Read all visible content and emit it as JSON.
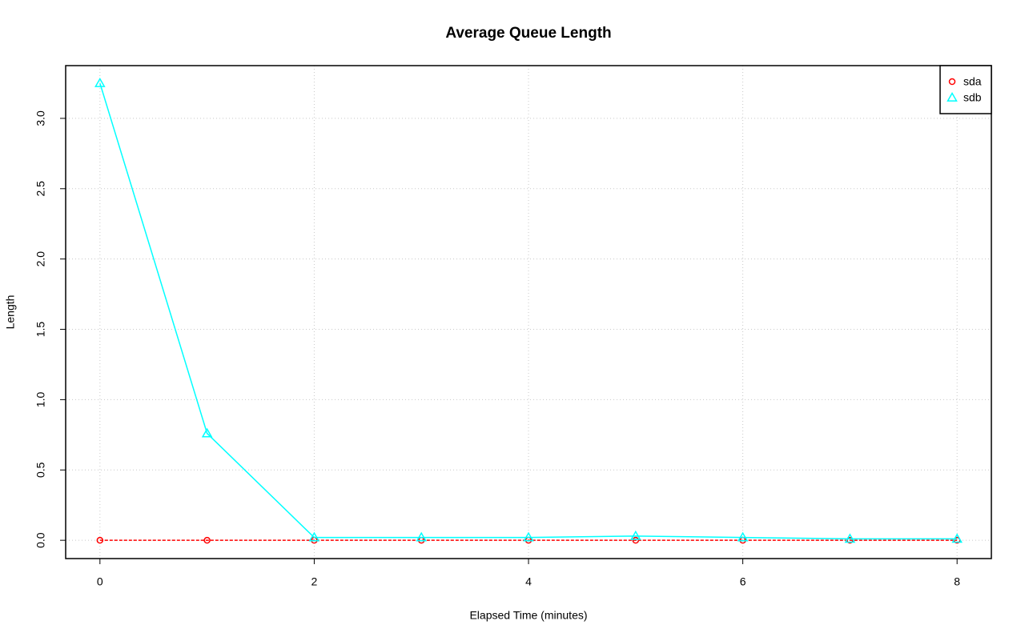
{
  "chart_data": {
    "type": "line",
    "title": "Average Queue Length",
    "x_label": "Elapsed Time (minutes)",
    "y_label": "Length",
    "x": [
      0,
      1,
      2,
      3,
      4,
      5,
      6,
      7,
      8
    ],
    "series": [
      {
        "name": "sda",
        "color": "#ff0000",
        "marker": "circle",
        "linestyle": "dashed",
        "values": [
          0,
          0,
          0,
          0,
          0,
          0,
          0,
          0,
          0
        ]
      },
      {
        "name": "sdb",
        "color": "#00ffff",
        "marker": "triangle",
        "linestyle": "solid",
        "values": [
          3.25,
          0.76,
          0.02,
          0.02,
          0.02,
          0.03,
          0.02,
          0.01,
          0.01
        ]
      }
    ],
    "xlim": [
      -0.32,
      8.32
    ],
    "xticks": [
      0,
      2,
      4,
      6,
      8
    ],
    "ylim": [
      -0.13,
      3.375
    ],
    "yticks": [
      {
        "value": 0,
        "label": "0.0"
      },
      {
        "value": 0.5,
        "label": "0.5"
      },
      {
        "value": 1,
        "label": "1.0"
      },
      {
        "value": 1.5,
        "label": "1.5"
      },
      {
        "value": 2,
        "label": "2.0"
      },
      {
        "value": 2.5,
        "label": "2.5"
      },
      {
        "value": 3,
        "label": "3.0"
      }
    ],
    "grid": true,
    "legend_position": "top-right"
  }
}
